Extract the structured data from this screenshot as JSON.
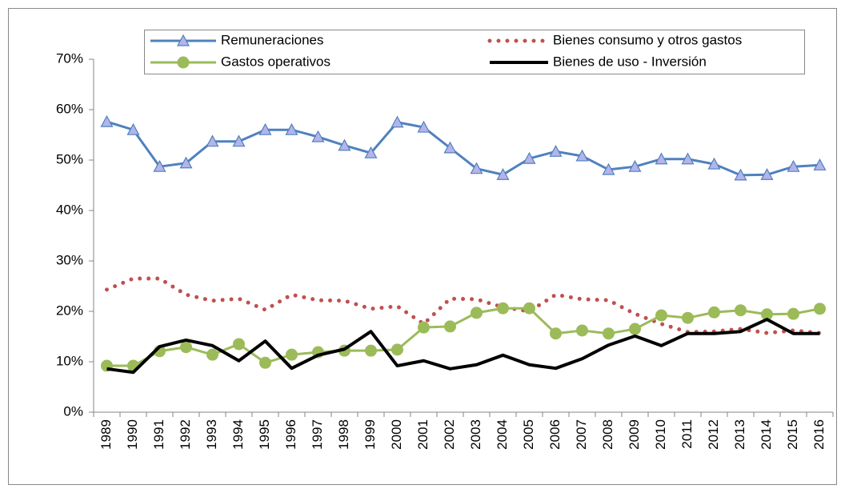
{
  "chart_data": {
    "type": "line",
    "categories": [
      "1989",
      "1990",
      "1991",
      "1992",
      "1993",
      "1994",
      "1995",
      "1996",
      "1997",
      "1998",
      "1999",
      "2000",
      "2001",
      "2002",
      "2003",
      "2004",
      "2005",
      "2006",
      "2007",
      "2008",
      "2009",
      "2010",
      "2011",
      "2012",
      "2013",
      "2014",
      "2015",
      "2016"
    ],
    "ylim": [
      0,
      70
    ],
    "yticks": [
      {
        "value": 0,
        "label": "0%"
      },
      {
        "value": 10,
        "label": "10%"
      },
      {
        "value": 20,
        "label": "20%"
      },
      {
        "value": 30,
        "label": "30%"
      },
      {
        "value": 40,
        "label": "40%"
      },
      {
        "value": 50,
        "label": "50%"
      },
      {
        "value": 60,
        "label": "60%"
      },
      {
        "value": 70,
        "label": "70%"
      }
    ],
    "grid": false,
    "legend": "top",
    "series": [
      {
        "name": "Remuneraciones",
        "color": "#4f81bd",
        "marker": "triangle",
        "line_style": "solid",
        "values": [
          57.6,
          56.0,
          48.7,
          49.4,
          53.7,
          53.7,
          56.0,
          56.0,
          54.6,
          52.9,
          51.4,
          57.5,
          56.5,
          52.4,
          48.3,
          47.1,
          50.3,
          51.7,
          50.8,
          48.1,
          48.7,
          50.2,
          50.2,
          49.2,
          47.0,
          47.1,
          48.7,
          49.0
        ]
      },
      {
        "name": "Bienes consumo y otros gastos",
        "color": "#c0504d",
        "marker": "none",
        "line_style": "dotted",
        "values": [
          24.3,
          26.5,
          26.5,
          23.3,
          22.1,
          22.5,
          20.3,
          23.3,
          22.2,
          22.1,
          20.5,
          21.0,
          17.5,
          22.5,
          22.4,
          20.8,
          20.0,
          23.3,
          22.4,
          22.2,
          19.5,
          17.5,
          15.9,
          16.0,
          16.5,
          15.7,
          16.2,
          15.7
        ]
      },
      {
        "name": "Gastos operativos",
        "color": "#9bbb59",
        "marker": "circle",
        "line_style": "solid",
        "values": [
          9.2,
          9.2,
          12.1,
          12.9,
          11.4,
          13.5,
          9.8,
          11.4,
          11.9,
          12.2,
          12.2,
          12.4,
          16.8,
          17.0,
          19.7,
          20.6,
          20.6,
          15.6,
          16.2,
          15.6,
          16.5,
          19.2,
          18.7,
          19.8,
          20.2,
          19.4,
          19.5,
          20.5
        ]
      },
      {
        "name": "Bienes de uso - Inversión",
        "color": "#000000",
        "marker": "none",
        "line_style": "bold",
        "values": [
          8.6,
          7.9,
          13.0,
          14.3,
          13.2,
          10.2,
          14.1,
          8.7,
          11.3,
          12.5,
          16.0,
          9.2,
          10.2,
          8.6,
          9.4,
          11.3,
          9.4,
          8.7,
          10.6,
          13.3,
          15.1,
          13.2,
          15.6,
          15.6,
          16.0,
          18.4,
          15.6,
          15.6
        ]
      }
    ]
  }
}
